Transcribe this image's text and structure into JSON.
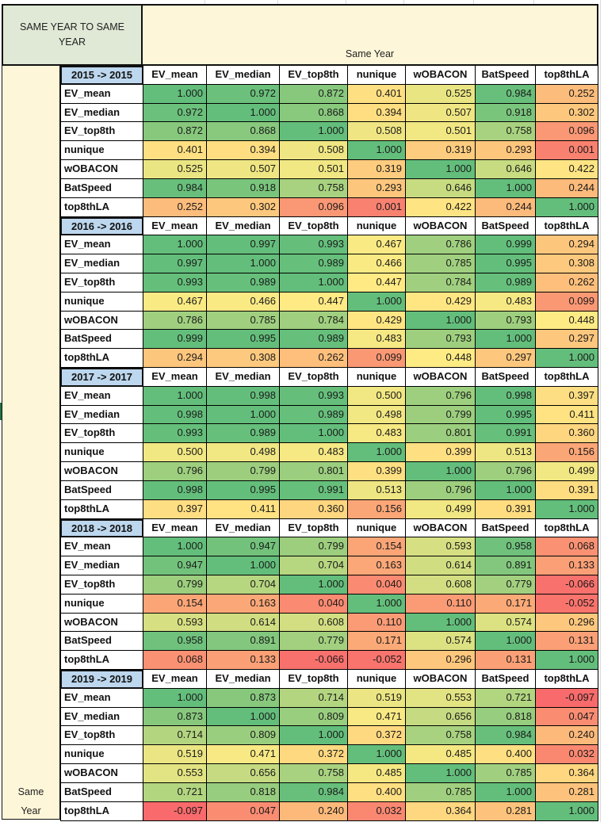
{
  "title": "SAME YEAR TO SAME YEAR",
  "banner": "Same Year",
  "side_label_line1": "Same",
  "side_label_line2": "Year",
  "columns": [
    "EV_mean",
    "EV_median",
    "EV_top8th",
    "nunique",
    "wOBACON",
    "BatSpeed",
    "top8thLA"
  ],
  "blocks": [
    {
      "label": "2015 -> 2015",
      "rows": [
        {
          "name": "EV_mean",
          "values": [
            "1.000",
            "0.972",
            "0.872",
            "0.401",
            "0.525",
            "0.984",
            "0.252"
          ]
        },
        {
          "name": "EV_median",
          "values": [
            "0.972",
            "1.000",
            "0.868",
            "0.394",
            "0.507",
            "0.918",
            "0.302"
          ]
        },
        {
          "name": "EV_top8th",
          "values": [
            "0.872",
            "0.868",
            "1.000",
            "0.508",
            "0.501",
            "0.758",
            "0.096"
          ]
        },
        {
          "name": "nunique",
          "values": [
            "0.401",
            "0.394",
            "0.508",
            "1.000",
            "0.319",
            "0.293",
            "0.001"
          ]
        },
        {
          "name": "wOBACON",
          "values": [
            "0.525",
            "0.507",
            "0.501",
            "0.319",
            "1.000",
            "0.646",
            "0.422"
          ]
        },
        {
          "name": "BatSpeed",
          "values": [
            "0.984",
            "0.918",
            "0.758",
            "0.293",
            "0.646",
            "1.000",
            "0.244"
          ]
        },
        {
          "name": "top8thLA",
          "values": [
            "0.252",
            "0.302",
            "0.096",
            "0.001",
            "0.422",
            "0.244",
            "1.000"
          ]
        }
      ]
    },
    {
      "label": "2016 -> 2016",
      "rows": [
        {
          "name": "EV_mean",
          "values": [
            "1.000",
            "0.997",
            "0.993",
            "0.467",
            "0.786",
            "0.999",
            "0.294"
          ]
        },
        {
          "name": "EV_median",
          "values": [
            "0.997",
            "1.000",
            "0.989",
            "0.466",
            "0.785",
            "0.995",
            "0.308"
          ]
        },
        {
          "name": "EV_top8th",
          "values": [
            "0.993",
            "0.989",
            "1.000",
            "0.447",
            "0.784",
            "0.989",
            "0.262"
          ]
        },
        {
          "name": "nunique",
          "values": [
            "0.467",
            "0.466",
            "0.447",
            "1.000",
            "0.429",
            "0.483",
            "0.099"
          ]
        },
        {
          "name": "wOBACON",
          "values": [
            "0.786",
            "0.785",
            "0.784",
            "0.429",
            "1.000",
            "0.793",
            "0.448"
          ]
        },
        {
          "name": "BatSpeed",
          "values": [
            "0.999",
            "0.995",
            "0.989",
            "0.483",
            "0.793",
            "1.000",
            "0.297"
          ]
        },
        {
          "name": "top8thLA",
          "values": [
            "0.294",
            "0.308",
            "0.262",
            "0.099",
            "0.448",
            "0.297",
            "1.000"
          ]
        }
      ]
    },
    {
      "label": "2017 -> 2017",
      "rows": [
        {
          "name": "EV_mean",
          "values": [
            "1.000",
            "0.998",
            "0.993",
            "0.500",
            "0.796",
            "0.998",
            "0.397"
          ]
        },
        {
          "name": "EV_median",
          "values": [
            "0.998",
            "1.000",
            "0.989",
            "0.498",
            "0.799",
            "0.995",
            "0.411"
          ]
        },
        {
          "name": "EV_top8th",
          "values": [
            "0.993",
            "0.989",
            "1.000",
            "0.483",
            "0.801",
            "0.991",
            "0.360"
          ]
        },
        {
          "name": "nunique",
          "values": [
            "0.500",
            "0.498",
            "0.483",
            "1.000",
            "0.399",
            "0.513",
            "0.156"
          ]
        },
        {
          "name": "wOBACON",
          "values": [
            "0.796",
            "0.799",
            "0.801",
            "0.399",
            "1.000",
            "0.796",
            "0.499"
          ]
        },
        {
          "name": "BatSpeed",
          "values": [
            "0.998",
            "0.995",
            "0.991",
            "0.513",
            "0.796",
            "1.000",
            "0.391"
          ]
        },
        {
          "name": "top8thLA",
          "values": [
            "0.397",
            "0.411",
            "0.360",
            "0.156",
            "0.499",
            "0.391",
            "1.000"
          ]
        }
      ]
    },
    {
      "label": "2018 -> 2018",
      "rows": [
        {
          "name": "EV_mean",
          "values": [
            "1.000",
            "0.947",
            "0.799",
            "0.154",
            "0.593",
            "0.958",
            "0.068"
          ]
        },
        {
          "name": "EV_median",
          "values": [
            "0.947",
            "1.000",
            "0.704",
            "0.163",
            "0.614",
            "0.891",
            "0.133"
          ]
        },
        {
          "name": "EV_top8th",
          "values": [
            "0.799",
            "0.704",
            "1.000",
            "0.040",
            "0.608",
            "0.779",
            "-0.066"
          ]
        },
        {
          "name": "nunique",
          "values": [
            "0.154",
            "0.163",
            "0.040",
            "1.000",
            "0.110",
            "0.171",
            "-0.052"
          ]
        },
        {
          "name": "wOBACON",
          "values": [
            "0.593",
            "0.614",
            "0.608",
            "0.110",
            "1.000",
            "0.574",
            "0.296"
          ]
        },
        {
          "name": "BatSpeed",
          "values": [
            "0.958",
            "0.891",
            "0.779",
            "0.171",
            "0.574",
            "1.000",
            "0.131"
          ]
        },
        {
          "name": "top8thLA",
          "values": [
            "0.068",
            "0.133",
            "-0.066",
            "-0.052",
            "0.296",
            "0.131",
            "1.000"
          ]
        }
      ]
    },
    {
      "label": "2019 -> 2019",
      "rows": [
        {
          "name": "EV_mean",
          "values": [
            "1.000",
            "0.873",
            "0.714",
            "0.519",
            "0.553",
            "0.721",
            "-0.097"
          ]
        },
        {
          "name": "EV_median",
          "values": [
            "0.873",
            "1.000",
            "0.809",
            "0.471",
            "0.656",
            "0.818",
            "0.047"
          ]
        },
        {
          "name": "EV_top8th",
          "values": [
            "0.714",
            "0.809",
            "1.000",
            "0.372",
            "0.758",
            "0.984",
            "0.240"
          ]
        },
        {
          "name": "nunique",
          "values": [
            "0.519",
            "0.471",
            "0.372",
            "1.000",
            "0.485",
            "0.400",
            "0.032"
          ]
        },
        {
          "name": "wOBACON",
          "values": [
            "0.553",
            "0.656",
            "0.758",
            "0.485",
            "1.000",
            "0.785",
            "0.364"
          ]
        },
        {
          "name": "BatSpeed",
          "values": [
            "0.721",
            "0.818",
            "0.984",
            "0.400",
            "0.785",
            "1.000",
            "0.281"
          ]
        },
        {
          "name": "top8thLA",
          "values": [
            "-0.097",
            "0.047",
            "0.240",
            "0.032",
            "0.364",
            "0.281",
            "1.000"
          ]
        }
      ]
    }
  ],
  "colors": {
    "heat_low": "#f8696b",
    "heat_mid": "#ffeb84",
    "heat_high": "#63be7b",
    "year_header_fill": "#bdd7ee",
    "title_fill": "#dfe9d5",
    "banner_fill": "#fdf6d8"
  }
}
